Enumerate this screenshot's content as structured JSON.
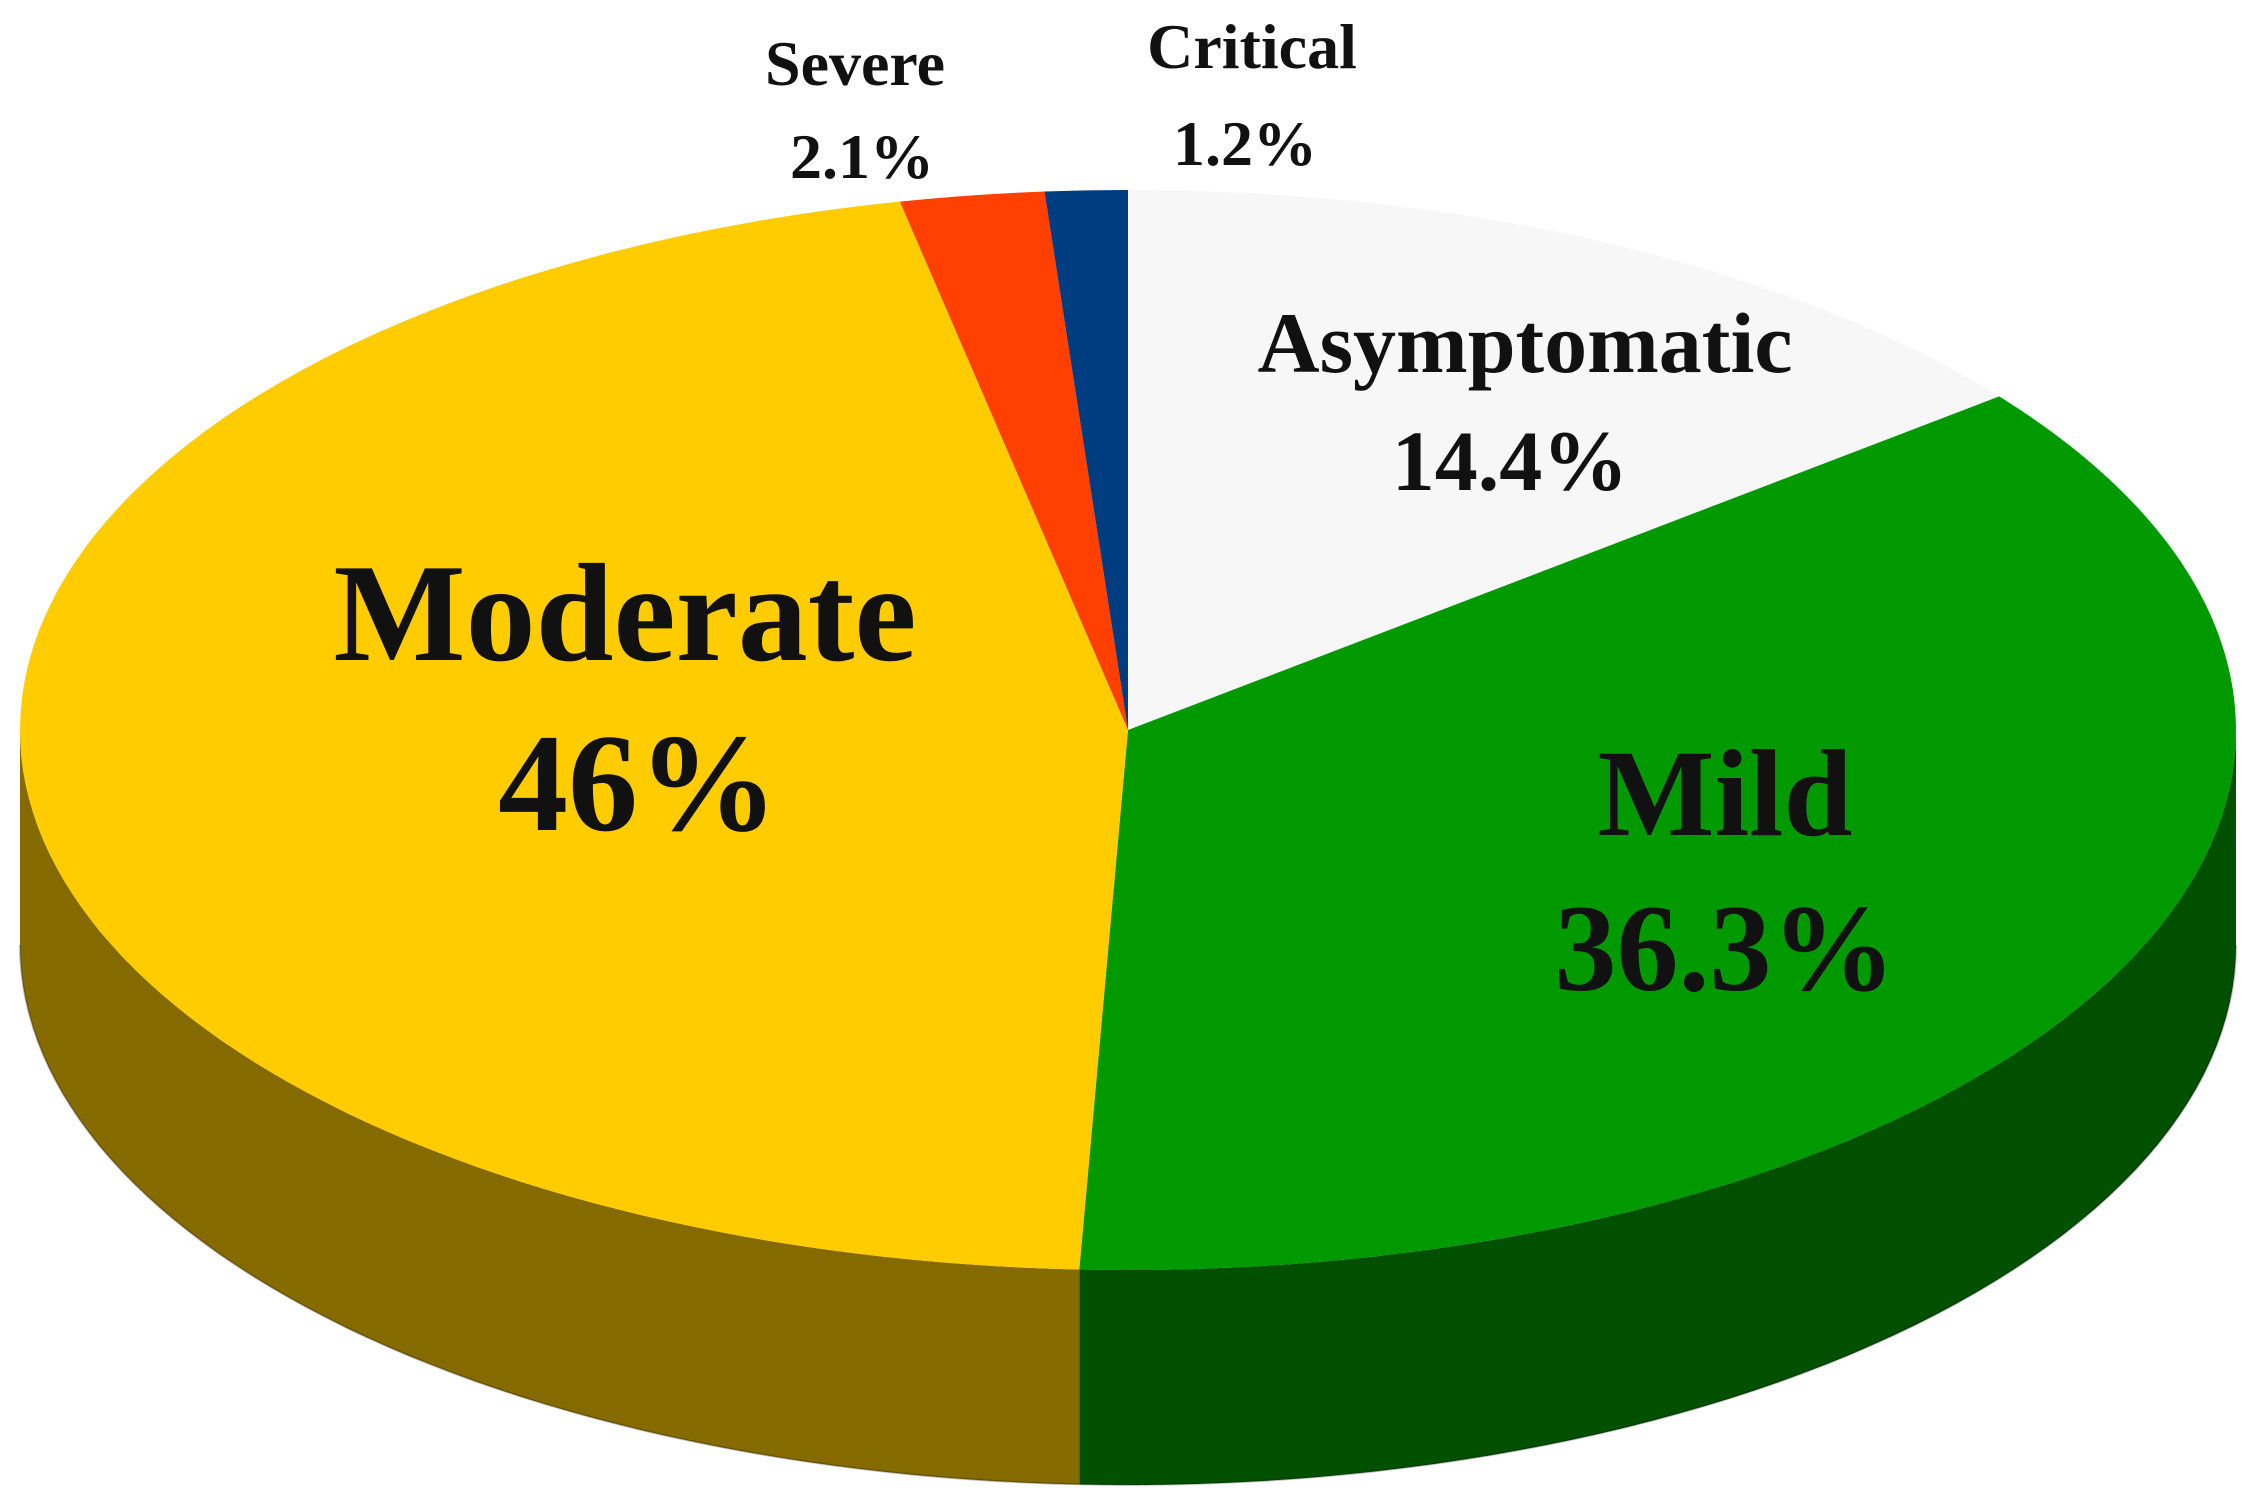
{
  "chart_data": {
    "type": "pie",
    "three_d": true,
    "title": "",
    "slices": [
      {
        "name": "Asymptomatic",
        "value": 14.4,
        "value_label": "14.4%",
        "color": "#f7f7f7"
      },
      {
        "name": "Mild",
        "value": 36.3,
        "value_label": "36.3%",
        "color": "#009900"
      },
      {
        "name": "Moderate",
        "value": 46,
        "value_label": "46%",
        "color": "#ffcc00"
      },
      {
        "name": "Severe",
        "value": 2.1,
        "value_label": "2.1%",
        "color": "#ff4000"
      },
      {
        "name": "Critical",
        "value": 1.2,
        "value_label": "1.2%",
        "color": "#003d80"
      }
    ]
  }
}
